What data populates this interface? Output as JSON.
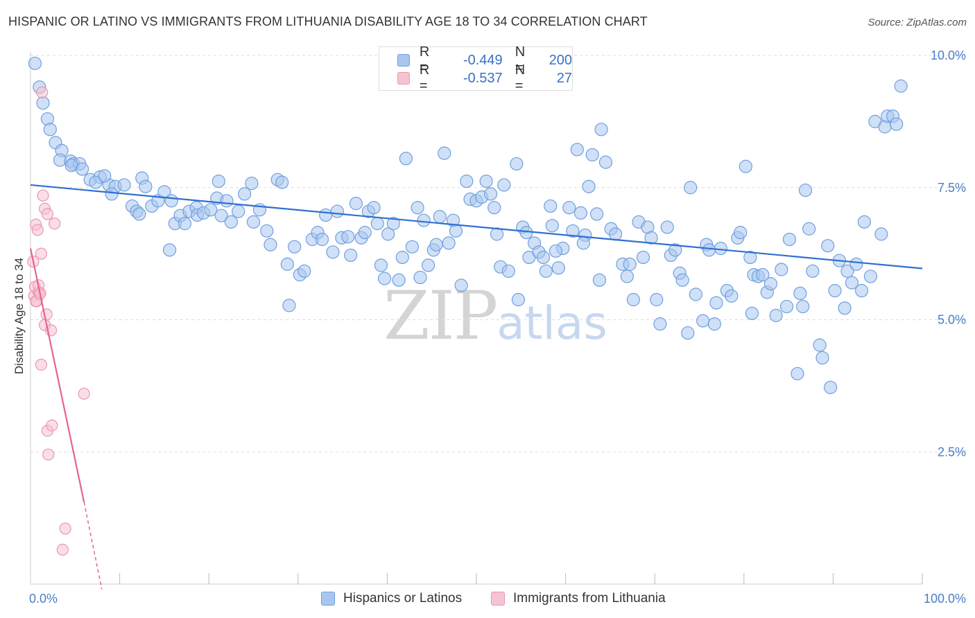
{
  "header": {
    "title": "HISPANIC OR LATINO VS IMMIGRANTS FROM LITHUANIA DISABILITY AGE 18 TO 34 CORRELATION CHART",
    "source": "Source: ZipAtlas.com"
  },
  "watermark": {
    "zip": "ZIP",
    "atlas": "atlas"
  },
  "legend": {
    "rows": [
      {
        "r_label": "R =",
        "r_value": "-0.449",
        "n_label": "N =",
        "n_value": "200"
      },
      {
        "r_label": "R =",
        "r_value": "-0.537",
        "n_label": "N =",
        "n_value": "27"
      }
    ]
  },
  "bottom_legend": {
    "series1": "Hispanics or Latinos",
    "series2": "Immigrants from Lithuania"
  },
  "colors": {
    "blue_fill": "#a9c6ee",
    "blue_stroke": "#6f9fe0",
    "blue_line": "#2f6fd1",
    "pink_fill": "#f6c3d2",
    "pink_stroke": "#ec96b1",
    "pink_line": "#e5638f",
    "grid": "#dddddd",
    "tick_text": "#4a7cc7"
  },
  "chart_data": {
    "type": "scatter",
    "title": "HISPANIC OR LATINO VS IMMIGRANTS FROM LITHUANIA DISABILITY AGE 18 TO 34 CORRELATION CHART",
    "xlabel": "",
    "ylabel": "Disability Age 18 to 34",
    "xlim": [
      0,
      100
    ],
    "ylim": [
      0,
      10.5
    ],
    "x_tick_labels": [
      {
        "x": 0,
        "label": "0.0%"
      },
      {
        "x": 100,
        "label": "100.0%"
      }
    ],
    "y_tick_labels": [
      {
        "y": 2.5,
        "label": "2.5%"
      },
      {
        "y": 5.0,
        "label": "5.0%"
      },
      {
        "y": 7.5,
        "label": "7.5%"
      },
      {
        "y": 10.0,
        "label": "10.0%"
      }
    ],
    "grid": true,
    "series": [
      {
        "name": "Hispanics or Latinos",
        "R": -0.449,
        "N": 200,
        "trend": {
          "x": [
            0,
            100
          ],
          "y": [
            7.55,
            5.97
          ]
        },
        "points": [
          [
            0.5,
            9.85
          ],
          [
            1.0,
            9.4
          ],
          [
            1.4,
            9.1
          ],
          [
            1.9,
            8.8
          ],
          [
            2.2,
            8.6
          ],
          [
            2.8,
            8.35
          ],
          [
            3.5,
            8.2
          ],
          [
            3.3,
            8.02
          ],
          [
            4.5,
            8.0
          ],
          [
            4.8,
            7.95
          ],
          [
            5.5,
            7.95
          ],
          [
            4.6,
            7.92
          ],
          [
            5.8,
            7.85
          ],
          [
            6.7,
            7.65
          ],
          [
            7.8,
            7.7
          ],
          [
            7.3,
            7.6
          ],
          [
            8.8,
            7.55
          ],
          [
            8.3,
            7.72
          ],
          [
            9.5,
            7.52
          ],
          [
            9.1,
            7.38
          ],
          [
            10.5,
            7.55
          ],
          [
            11.4,
            7.15
          ],
          [
            11.9,
            7.05
          ],
          [
            12.2,
            7.0
          ],
          [
            12.5,
            7.68
          ],
          [
            12.9,
            7.52
          ],
          [
            13.6,
            7.15
          ],
          [
            14.3,
            7.25
          ],
          [
            15.0,
            7.42
          ],
          [
            15.6,
            6.32
          ],
          [
            15.8,
            7.25
          ],
          [
            16.2,
            6.82
          ],
          [
            16.8,
            6.97
          ],
          [
            17.3,
            6.82
          ],
          [
            17.8,
            7.05
          ],
          [
            18.6,
            7.12
          ],
          [
            18.7,
            6.98
          ],
          [
            19.4,
            7.02
          ],
          [
            20.2,
            7.08
          ],
          [
            20.9,
            7.3
          ],
          [
            21.4,
            6.97
          ],
          [
            21.1,
            7.62
          ],
          [
            22.0,
            7.25
          ],
          [
            22.5,
            6.85
          ],
          [
            23.3,
            7.05
          ],
          [
            24.0,
            7.38
          ],
          [
            24.8,
            7.58
          ],
          [
            25.0,
            6.85
          ],
          [
            25.7,
            7.08
          ],
          [
            26.5,
            6.68
          ],
          [
            26.9,
            6.42
          ],
          [
            27.7,
            7.65
          ],
          [
            28.2,
            7.6
          ],
          [
            28.8,
            6.05
          ],
          [
            29.0,
            5.27
          ],
          [
            29.6,
            6.38
          ],
          [
            30.2,
            5.85
          ],
          [
            30.7,
            5.92
          ],
          [
            31.6,
            6.52
          ],
          [
            32.2,
            6.65
          ],
          [
            32.7,
            6.52
          ],
          [
            33.1,
            6.98
          ],
          [
            33.9,
            6.28
          ],
          [
            34.4,
            7.05
          ],
          [
            34.9,
            6.55
          ],
          [
            35.6,
            6.57
          ],
          [
            35.9,
            6.22
          ],
          [
            36.5,
            7.2
          ],
          [
            37.1,
            6.55
          ],
          [
            37.5,
            6.65
          ],
          [
            37.9,
            7.05
          ],
          [
            38.5,
            7.12
          ],
          [
            38.9,
            6.82
          ],
          [
            39.3,
            6.03
          ],
          [
            39.7,
            5.78
          ],
          [
            40.1,
            6.62
          ],
          [
            40.7,
            6.82
          ],
          [
            41.3,
            5.75
          ],
          [
            41.7,
            6.18
          ],
          [
            42.1,
            8.05
          ],
          [
            42.8,
            6.38
          ],
          [
            43.4,
            7.12
          ],
          [
            43.7,
            5.8
          ],
          [
            44.1,
            6.88
          ],
          [
            44.6,
            6.03
          ],
          [
            45.2,
            6.32
          ],
          [
            45.5,
            6.42
          ],
          [
            45.9,
            6.95
          ],
          [
            46.4,
            8.15
          ],
          [
            46.9,
            6.45
          ],
          [
            47.4,
            6.88
          ],
          [
            47.7,
            6.68
          ],
          [
            48.3,
            5.65
          ],
          [
            48.9,
            7.62
          ],
          [
            49.3,
            7.28
          ],
          [
            50.0,
            7.25
          ],
          [
            50.6,
            7.32
          ],
          [
            51.1,
            7.62
          ],
          [
            51.6,
            7.38
          ],
          [
            52.0,
            7.12
          ],
          [
            52.3,
            6.62
          ],
          [
            52.7,
            6.0
          ],
          [
            53.1,
            7.55
          ],
          [
            53.6,
            5.92
          ],
          [
            54.5,
            7.95
          ],
          [
            54.7,
            5.38
          ],
          [
            55.2,
            6.75
          ],
          [
            55.6,
            6.65
          ],
          [
            55.9,
            6.18
          ],
          [
            56.5,
            6.45
          ],
          [
            57.0,
            6.28
          ],
          [
            57.5,
            6.18
          ],
          [
            57.8,
            5.92
          ],
          [
            58.3,
            7.15
          ],
          [
            58.5,
            6.78
          ],
          [
            59.2,
            5.98
          ],
          [
            59.7,
            6.35
          ],
          [
            60.4,
            7.12
          ],
          [
            60.8,
            6.68
          ],
          [
            61.3,
            8.22
          ],
          [
            61.7,
            7.02
          ],
          [
            62.2,
            6.6
          ],
          [
            62.6,
            7.52
          ],
          [
            63.0,
            8.12
          ],
          [
            63.5,
            7.0
          ],
          [
            64.0,
            8.6
          ],
          [
            64.5,
            7.98
          ],
          [
            65.1,
            6.72
          ],
          [
            66.4,
            6.05
          ],
          [
            66.9,
            5.82
          ],
          [
            67.2,
            6.05
          ],
          [
            67.6,
            5.38
          ],
          [
            68.2,
            6.85
          ],
          [
            68.7,
            6.18
          ],
          [
            69.2,
            6.75
          ],
          [
            69.6,
            6.55
          ],
          [
            70.2,
            5.38
          ],
          [
            70.6,
            4.92
          ],
          [
            71.4,
            6.75
          ],
          [
            71.8,
            6.22
          ],
          [
            72.3,
            6.32
          ],
          [
            72.8,
            5.88
          ],
          [
            73.1,
            5.75
          ],
          [
            73.7,
            4.75
          ],
          [
            74.0,
            7.5
          ],
          [
            74.6,
            5.48
          ],
          [
            75.4,
            4.98
          ],
          [
            75.8,
            6.42
          ],
          [
            76.1,
            6.32
          ],
          [
            76.7,
            4.92
          ],
          [
            76.9,
            5.32
          ],
          [
            77.4,
            6.35
          ],
          [
            78.1,
            5.55
          ],
          [
            78.6,
            5.45
          ],
          [
            79.3,
            6.55
          ],
          [
            79.6,
            6.65
          ],
          [
            80.2,
            7.9
          ],
          [
            80.7,
            6.18
          ],
          [
            81.1,
            5.85
          ],
          [
            81.6,
            5.82
          ],
          [
            82.1,
            5.85
          ],
          [
            82.6,
            5.52
          ],
          [
            83.0,
            5.68
          ],
          [
            83.6,
            5.08
          ],
          [
            84.2,
            5.95
          ],
          [
            84.8,
            5.25
          ],
          [
            85.1,
            6.52
          ],
          [
            86.0,
            3.98
          ],
          [
            86.3,
            5.5
          ],
          [
            86.9,
            7.45
          ],
          [
            87.3,
            6.72
          ],
          [
            87.7,
            5.92
          ],
          [
            88.5,
            4.52
          ],
          [
            88.8,
            4.28
          ],
          [
            89.4,
            6.4
          ],
          [
            89.7,
            3.72
          ],
          [
            90.2,
            5.55
          ],
          [
            90.7,
            6.12
          ],
          [
            91.3,
            5.22
          ],
          [
            91.6,
            5.92
          ],
          [
            92.1,
            5.7
          ],
          [
            92.6,
            6.05
          ],
          [
            93.2,
            5.55
          ],
          [
            93.5,
            6.85
          ],
          [
            94.2,
            5.82
          ],
          [
            94.7,
            8.75
          ],
          [
            95.4,
            6.62
          ],
          [
            95.8,
            8.65
          ],
          [
            96.1,
            8.85
          ],
          [
            96.7,
            8.85
          ],
          [
            97.1,
            8.7
          ],
          [
            97.6,
            9.42
          ],
          [
            80.9,
            5.12
          ],
          [
            86.6,
            5.25
          ],
          [
            62.0,
            6.45
          ],
          [
            65.6,
            6.62
          ],
          [
            63.8,
            5.75
          ],
          [
            58.9,
            6.3
          ]
        ]
      },
      {
        "name": "Immigrants from Lithuania",
        "R": -0.537,
        "N": 27,
        "trend": {
          "x": [
            0,
            6.0
          ],
          "y": [
            6.35,
            1.55
          ]
        },
        "trend_dashed": {
          "x": [
            6.0,
            8.0
          ],
          "y": [
            1.55,
            -0.1
          ]
        },
        "points": [
          [
            1.3,
            9.3
          ],
          [
            0.3,
            6.1
          ],
          [
            0.4,
            5.45
          ],
          [
            0.5,
            5.62
          ],
          [
            0.7,
            5.35
          ],
          [
            0.9,
            5.52
          ],
          [
            0.9,
            5.65
          ],
          [
            1.0,
            5.48
          ],
          [
            1.2,
            6.25
          ],
          [
            0.6,
            6.8
          ],
          [
            0.8,
            6.7
          ],
          [
            1.4,
            7.35
          ],
          [
            1.6,
            7.1
          ],
          [
            1.9,
            7.0
          ],
          [
            2.7,
            6.82
          ],
          [
            1.2,
            4.15
          ],
          [
            1.6,
            4.9
          ],
          [
            1.8,
            5.1
          ],
          [
            2.3,
            4.8
          ],
          [
            1.9,
            2.9
          ],
          [
            2.4,
            3.0
          ],
          [
            2.0,
            2.45
          ],
          [
            3.9,
            1.05
          ],
          [
            3.6,
            0.65
          ],
          [
            6.0,
            3.6
          ],
          [
            0.6,
            5.35
          ],
          [
            1.1,
            5.5
          ]
        ]
      }
    ]
  }
}
